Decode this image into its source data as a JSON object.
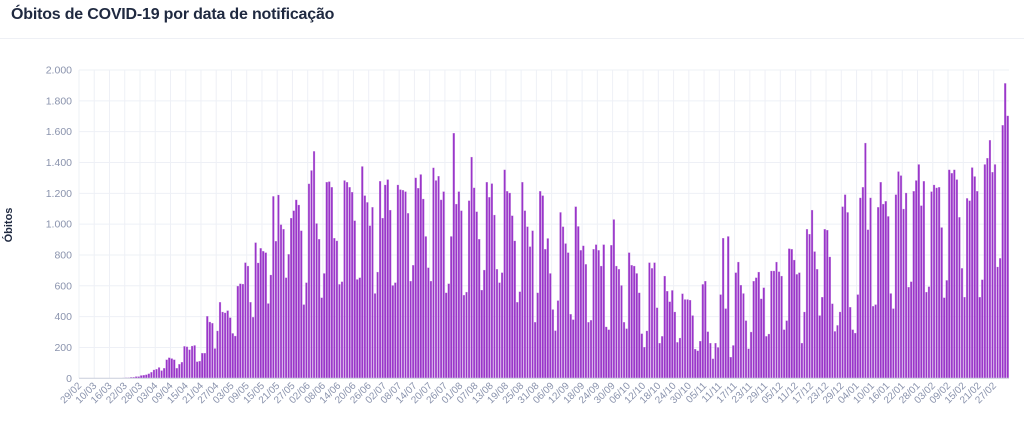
{
  "title": "Óbitos de COVID-19 por data de notificação",
  "chart_data": {
    "type": "bar",
    "title": "Óbitos de COVID-19 por data de notificação",
    "xlabel": "",
    "ylabel": "Óbitos",
    "ylim": [
      0,
      2000
    ],
    "y_ticks": [
      0,
      200,
      400,
      600,
      800,
      1000,
      1200,
      1400,
      1600,
      1800,
      2000
    ],
    "y_tick_labels": [
      "0",
      "200",
      "400",
      "600",
      "800",
      "1.000",
      "1.200",
      "1.400",
      "1.600",
      "1.800",
      "2.000"
    ],
    "grid": true,
    "bar_color": "#9a35c9",
    "x_tick_every": 6,
    "x_tick_labels": [
      "29/02",
      "10/03",
      "16/03",
      "22/03",
      "28/03",
      "03/04",
      "09/04",
      "15/04",
      "21/04",
      "27/04",
      "03/05",
      "09/05",
      "15/05",
      "21/05",
      "27/05",
      "02/06",
      "08/06",
      "14/06",
      "20/06",
      "26/06",
      "02/07",
      "08/07",
      "14/07",
      "20/07",
      "26/07",
      "01/08",
      "07/08",
      "13/08",
      "19/08",
      "25/08",
      "31/08",
      "06/09",
      "12/09",
      "18/09",
      "24/09",
      "30/09",
      "06/10",
      "12/10",
      "18/10",
      "24/10",
      "30/10",
      "05/11",
      "11/11",
      "17/11",
      "23/11",
      "29/11",
      "05/12",
      "11/12",
      "17/12",
      "23/12",
      "29/12",
      "04/01",
      "10/01",
      "16/01",
      "22/01",
      "28/01",
      "03/02",
      "09/02",
      "15/02",
      "21/02",
      "27/02"
    ],
    "values": [
      0,
      0,
      0,
      0,
      0,
      0,
      0,
      0,
      0,
      0,
      0,
      0,
      0,
      0,
      0,
      0,
      1,
      2,
      3,
      4,
      6,
      7,
      11,
      11,
      18,
      20,
      23,
      29,
      39,
      54,
      59,
      70,
      50,
      65,
      120,
      133,
      128,
      120,
      65,
      91,
      104,
      207,
      204,
      185,
      209,
      213,
      107,
      111,
      163,
      163,
      402,
      365,
      357,
      193,
      307,
      493,
      430,
      424,
      439,
      393,
      291,
      274,
      598,
      613,
      611,
      750,
      728,
      493,
      396,
      880,
      748,
      843,
      824,
      815,
      485,
      670,
      1180,
      889,
      1189,
      996,
      967,
      652,
      804,
      1039,
      1087,
      1157,
      1124,
      957,
      478,
      620,
      1261,
      1348,
      1472,
      1004,
      902,
      522,
      680,
      1272,
      1276,
      1239,
      909,
      891,
      609,
      626,
      1283,
      1272,
      1239,
      1207,
      1022,
      641,
      652,
      1374,
      1185,
      1141,
      989,
      1109,
      550,
      689,
      1278,
      1039,
      1254,
      1289,
      1091,
      602,
      620,
      1254,
      1224,
      1220,
      1211,
      1070,
      630,
      733,
      1300,
      1233,
      1322,
      1163,
      920,
      717,
      630,
      1365,
      1283,
      1311,
      1157,
      1211,
      554,
      613,
      920,
      1590,
      1130,
      1211,
      1087,
      539,
      559,
      1152,
      1435,
      1235,
      1080,
      902,
      572,
      702,
      1272,
      1174,
      1263,
      1059,
      707,
      620,
      685,
      1352,
      1213,
      1202,
      1054,
      891,
      493,
      561,
      1272,
      1087,
      983,
      854,
      957,
      363,
      554,
      1213,
      1185,
      837,
      907,
      680,
      446,
      309,
      504,
      1076,
      983,
      874,
      815,
      415,
      380,
      1113,
      985,
      830,
      859,
      739,
      363,
      376,
      837,
      867,
      830,
      728,
      867,
      333,
      315,
      863,
      1030,
      728,
      707,
      602,
      363,
      322,
      815,
      733,
      728,
      680,
      554,
      289,
      202,
      307,
      750,
      713,
      750,
      457,
      228,
      272,
      663,
      565,
      496,
      570,
      430,
      233,
      261,
      548,
      511,
      511,
      507,
      407,
      189,
      178,
      241,
      609,
      630,
      302,
      228,
      126,
      228,
      200,
      543,
      909,
      452,
      920,
      137,
      213,
      685,
      754,
      604,
      550,
      374,
      191,
      300,
      630,
      652,
      689,
      515,
      587,
      272,
      287,
      696,
      696,
      754,
      691,
      663,
      315,
      374,
      841,
      837,
      767,
      674,
      685,
      228,
      430,
      967,
      935,
      1091,
      822,
      707,
      407,
      526,
      967,
      961,
      787,
      483,
      304,
      343,
      430,
      1113,
      1191,
      1076,
      461,
      315,
      293,
      543,
      1170,
      1239,
      1526,
      963,
      1170,
      467,
      478,
      1109,
      1272,
      1130,
      1148,
      1050,
      550,
      452,
      1191,
      1341,
      1315,
      1098,
      1202,
      591,
      626,
      1213,
      1283,
      1387,
      1120,
      1278,
      559,
      594,
      1211,
      1254,
      1235,
      1239,
      978,
      522,
      635,
      1352,
      1330,
      1352,
      1289,
      1044,
      713,
      526,
      1167,
      1152,
      1367,
      1309,
      1213,
      526,
      639,
      1387,
      1428,
      1544,
      1337,
      1387,
      722,
      778,
      1641,
      1913,
      1702
    ]
  }
}
